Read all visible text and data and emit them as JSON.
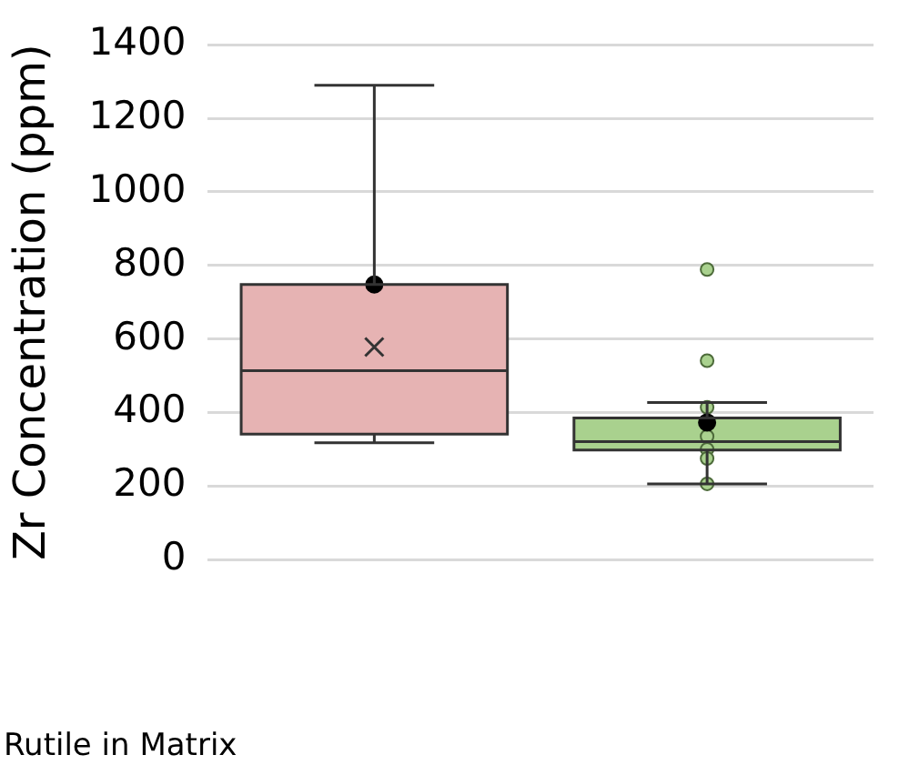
{
  "chart_data": {
    "type": "box",
    "ylabel": "Zr Concentration (ppm)",
    "categories": [
      null,
      null
    ],
    "colors": [
      "#e6b3b3",
      "#a9d18e"
    ],
    "boxes": [
      {
        "low": 318,
        "q1": 341,
        "median": 514,
        "q3": 748,
        "high": 1290,
        "mean": 578
      },
      {
        "low": 206,
        "q1": 298,
        "median": 321,
        "q3": 385,
        "high": 427,
        "outliers": [
          789,
          541,
          414,
          335,
          300,
          275,
          206
        ]
      }
    ],
    "series": [
      {
        "type": "scatter",
        "color": "#000000",
        "values": [
          748,
          373
        ]
      }
    ],
    "ylim": [
      0,
      1400
    ],
    "yticks": [
      0,
      200,
      400,
      600,
      800,
      1000,
      1200,
      1400
    ],
    "grid": "y",
    "legend": false,
    "annotations": [
      "Rutile in Matrix"
    ]
  }
}
